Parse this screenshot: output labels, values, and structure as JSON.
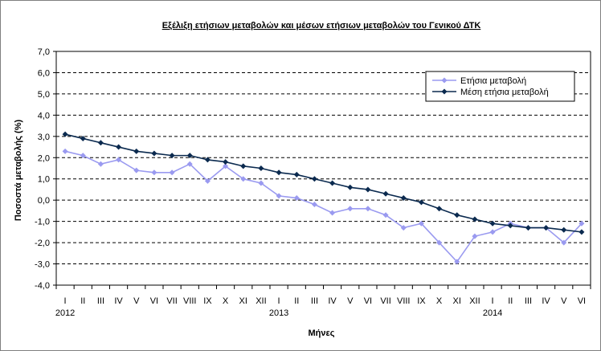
{
  "chart_data": {
    "type": "line",
    "title": "Εξέλιξη ετήσιων μεταβολών και μέσων ετήσιων μεταβολών του Γενικού ΔΤΚ",
    "xlabel": "Μήνες",
    "ylabel": "Ποσοστά μεταβολής (%)",
    "ylim": [
      -4.0,
      7.0
    ],
    "ytick_step": 1.0,
    "ytick_labels": [
      "7,0",
      "6,0",
      "5,0",
      "4,0",
      "3,0",
      "2,0",
      "1,0",
      "0,0",
      "-1,0",
      "-2,0",
      "-3,0",
      "-4,0"
    ],
    "grid": "horizontal-dashed",
    "legend_position": "top-right",
    "categories": [
      "I",
      "II",
      "III",
      "IV",
      "V",
      "VI",
      "VII",
      "VIII",
      "IX",
      "X",
      "XI",
      "XII",
      "I",
      "II",
      "III",
      "IV",
      "V",
      "VI",
      "VII",
      "VIII",
      "IX",
      "X",
      "XI",
      "XII",
      "I",
      "II",
      "III",
      "IV",
      "V",
      "VI"
    ],
    "year_labels": [
      {
        "text": "2012",
        "index": 0
      },
      {
        "text": "2013",
        "index": 12
      },
      {
        "text": "2014",
        "index": 24
      }
    ],
    "series": [
      {
        "name": "Ετήσια μεταβολή",
        "color": "#9a9af0",
        "marker": "diamond",
        "values": [
          2.3,
          2.1,
          1.7,
          1.9,
          1.4,
          1.3,
          1.3,
          1.7,
          0.9,
          1.6,
          1.0,
          0.8,
          0.2,
          0.1,
          -0.2,
          -0.6,
          -0.4,
          -0.4,
          -0.7,
          -1.3,
          -1.1,
          -2.0,
          -2.9,
          -1.7,
          -1.5,
          -1.1,
          -1.3,
          -1.3,
          -2.0,
          -1.1
        ]
      },
      {
        "name": "Μέση ετήσια μεταβολή",
        "color": "#0b2a4f",
        "marker": "diamond",
        "values": [
          3.1,
          2.9,
          2.7,
          2.5,
          2.3,
          2.2,
          2.1,
          2.1,
          1.9,
          1.8,
          1.6,
          1.5,
          1.3,
          1.2,
          1.0,
          0.8,
          0.6,
          0.5,
          0.3,
          0.1,
          -0.1,
          -0.4,
          -0.7,
          -0.9,
          -1.1,
          -1.2,
          -1.3,
          -1.3,
          -1.4,
          -1.5
        ]
      }
    ]
  }
}
